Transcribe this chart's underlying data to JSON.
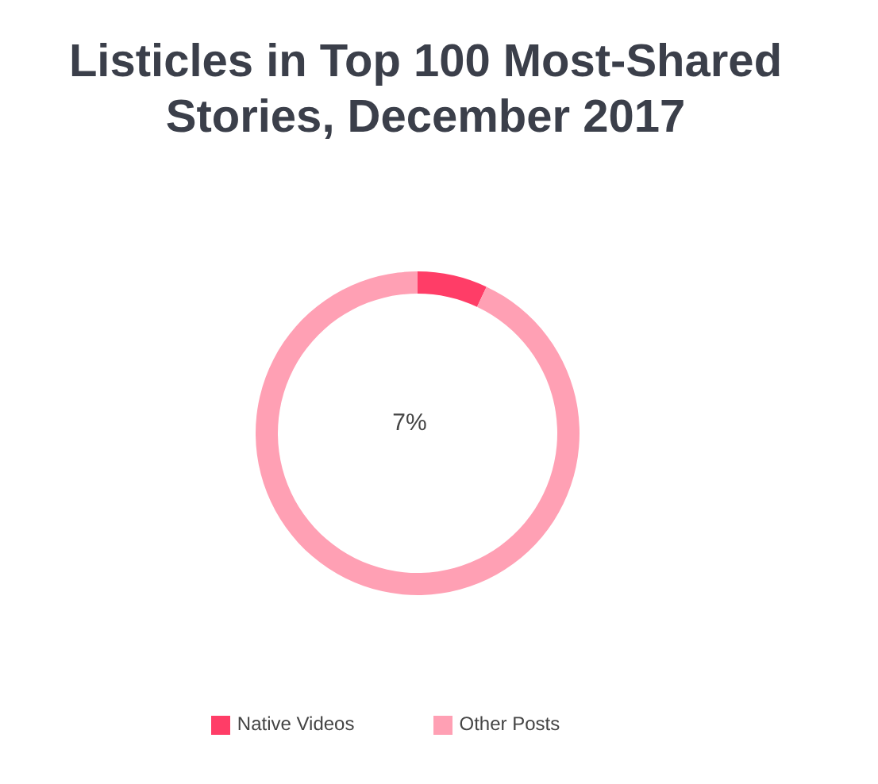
{
  "chart_data": {
    "type": "donut",
    "title": "Listicles in Top 100 Most-Shared Stories, December 2017",
    "categories": [
      "Native Videos",
      "Other Posts"
    ],
    "values": [
      7,
      93
    ],
    "colors": [
      "#ff3d67",
      "#ffa0b4"
    ],
    "annotations": [
      "7%"
    ],
    "legend": "bottom"
  }
}
